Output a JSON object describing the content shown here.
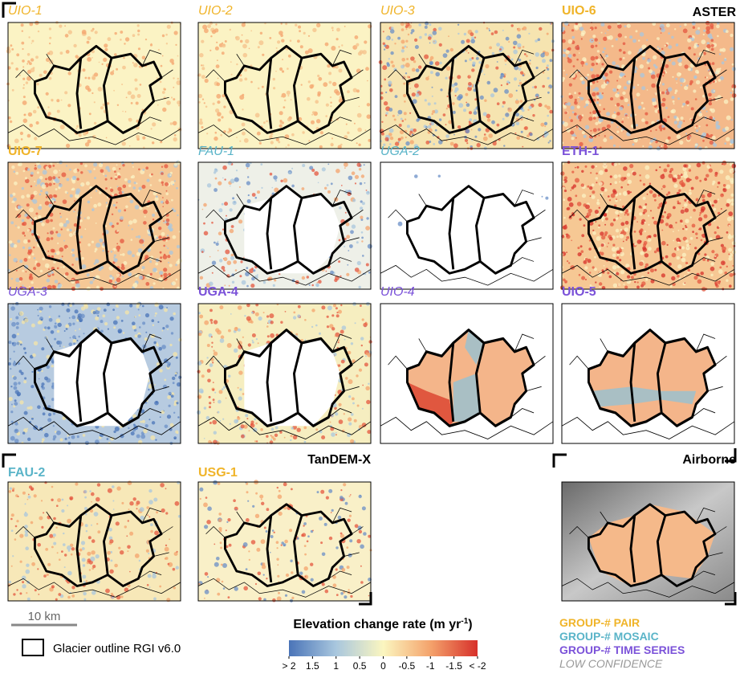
{
  "sections": [
    {
      "title": "ASTER"
    },
    {
      "title": "TanDEM-X"
    },
    {
      "title": "Airborne"
    }
  ],
  "panels": [
    {
      "label": "UIO-1",
      "color": "#f0b429",
      "italic": true
    },
    {
      "label": "UIO-2",
      "color": "#f0b429",
      "italic": true
    },
    {
      "label": "UIO-3",
      "color": "#f0b429",
      "italic": true
    },
    {
      "label": "UIO-6",
      "color": "#f0b429",
      "italic": false
    },
    {
      "label": "UIO-7",
      "color": "#f0b429",
      "italic": false
    },
    {
      "label": "FAU-1",
      "color": "#5ab4c8",
      "italic": true
    },
    {
      "label": "UGA-2",
      "color": "#5ab4c8",
      "italic": true
    },
    {
      "label": "ETH-1",
      "color": "#7b52d9",
      "italic": false
    },
    {
      "label": "UGA-3",
      "color": "#7b52d9",
      "italic": true
    },
    {
      "label": "UGA-4",
      "color": "#7b52d9",
      "italic": false
    },
    {
      "label": "UIO-4",
      "color": "#7b52d9",
      "italic": true
    },
    {
      "label": "UIO-5",
      "color": "#7b52d9",
      "italic": false
    },
    {
      "label": "FAU-2",
      "color": "#5ab4c8",
      "italic": false
    },
    {
      "label": "USG-1",
      "color": "#f0b429",
      "italic": false
    }
  ],
  "scale_bar": "10 km",
  "outline_legend": "Glacier outline RGI v6.0",
  "colorbar": {
    "title_parts": [
      "Elevation change rate (m yr",
      "-1",
      ")"
    ],
    "lim": [
      2,
      -2
    ],
    "ticks": [
      {
        "value": 2,
        "label": "> 2"
      },
      1.5,
      1,
      0.5,
      0,
      -0.5,
      -1,
      -1.5,
      {
        "value": -2,
        "label": "< -2"
      }
    ]
  },
  "groups": [
    {
      "label": "GROUP-# PAIR",
      "color": "#f0b429",
      "italic": false
    },
    {
      "label": "GROUP-# MOSAIC",
      "color": "#5ab4c8",
      "italic": false
    },
    {
      "label": "GROUP-# TIME SERIES",
      "color": "#7b52d9",
      "italic": false
    },
    {
      "label": "LOW CONFIDENCE",
      "color": "#999999",
      "italic": true
    }
  ]
}
